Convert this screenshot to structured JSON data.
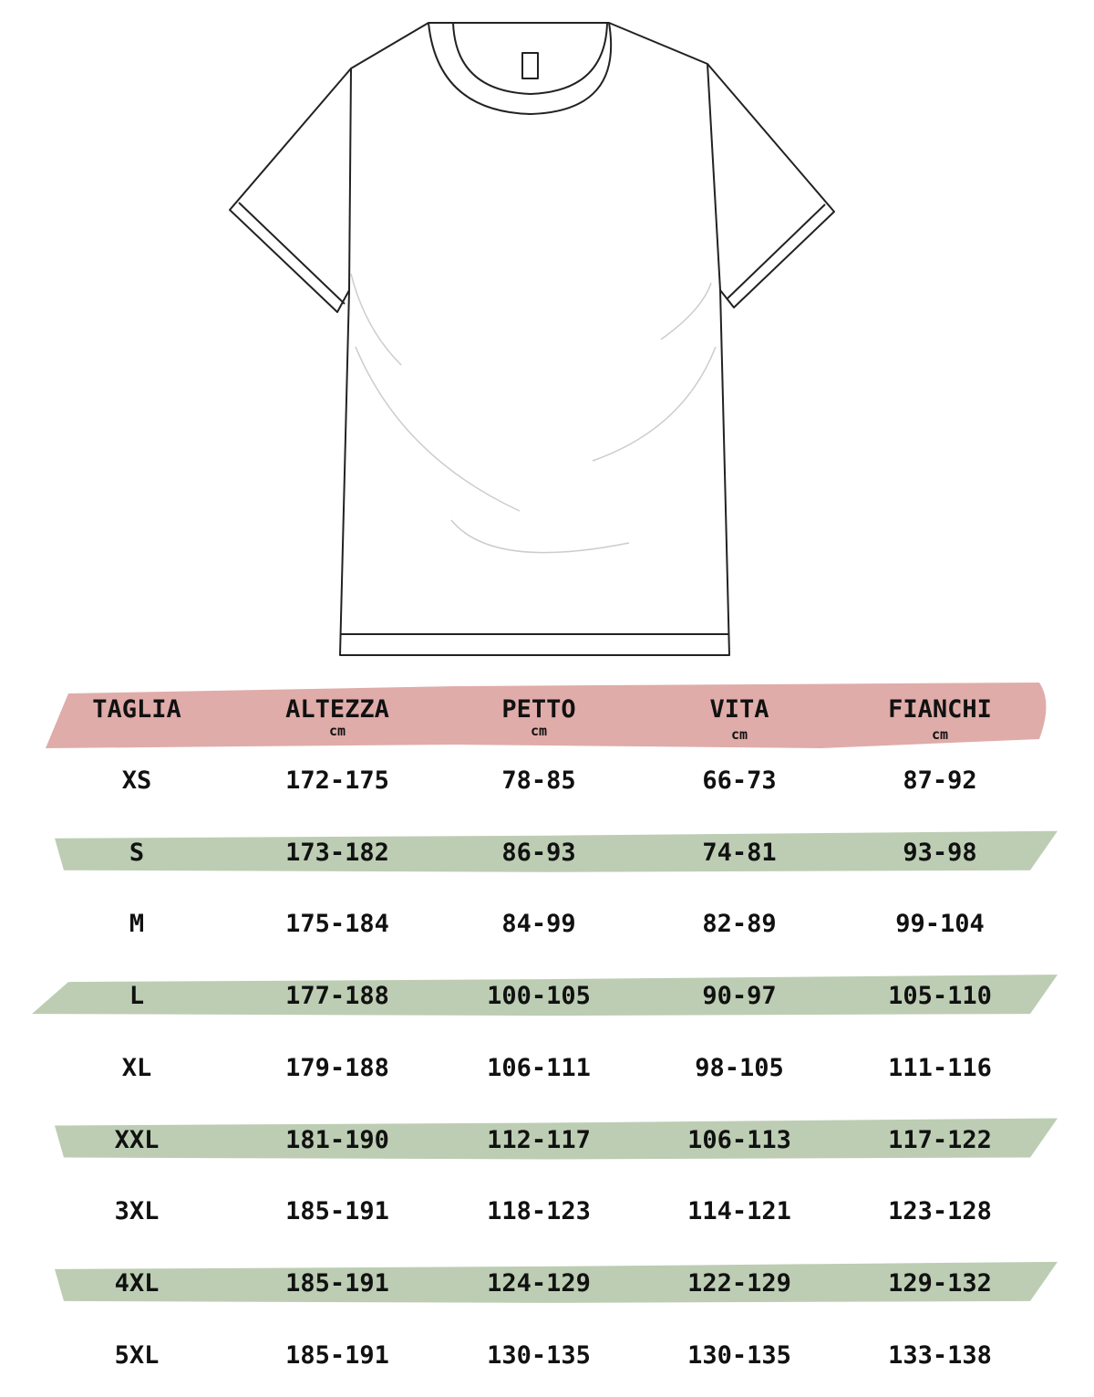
{
  "colors": {
    "header_band": "#dfaca9",
    "row_band": "#bccdb3",
    "text": "#111111",
    "outline": "#222222"
  },
  "illustration": "t-shirt-outline",
  "table": {
    "headers": [
      {
        "label": "TAGLIA",
        "unit": ""
      },
      {
        "label": "ALTEZZA",
        "unit": "cm"
      },
      {
        "label": "PETTO",
        "unit": "cm"
      },
      {
        "label": "VITA",
        "unit": "cm"
      },
      {
        "label": "FIANCHI",
        "unit": "cm"
      }
    ],
    "rows": [
      [
        "XS",
        "172-175",
        "78-85",
        "66-73",
        "87-92"
      ],
      [
        "S",
        "173-182",
        "86-93",
        "74-81",
        "93-98"
      ],
      [
        "M",
        "175-184",
        "84-99",
        "82-89",
        "99-104"
      ],
      [
        "L",
        "177-188",
        "100-105",
        "90-97",
        "105-110"
      ],
      [
        "XL",
        "179-188",
        "106-111",
        "98-105",
        "111-116"
      ],
      [
        "XXL",
        "181-190",
        "112-117",
        "106-113",
        "117-122"
      ],
      [
        "3XL",
        "185-191",
        "118-123",
        "114-121",
        "123-128"
      ],
      [
        "4XL",
        "185-191",
        "124-129",
        "122-129",
        "129-132"
      ],
      [
        "5XL",
        "185-191",
        "130-135",
        "130-135",
        "133-138"
      ]
    ]
  }
}
